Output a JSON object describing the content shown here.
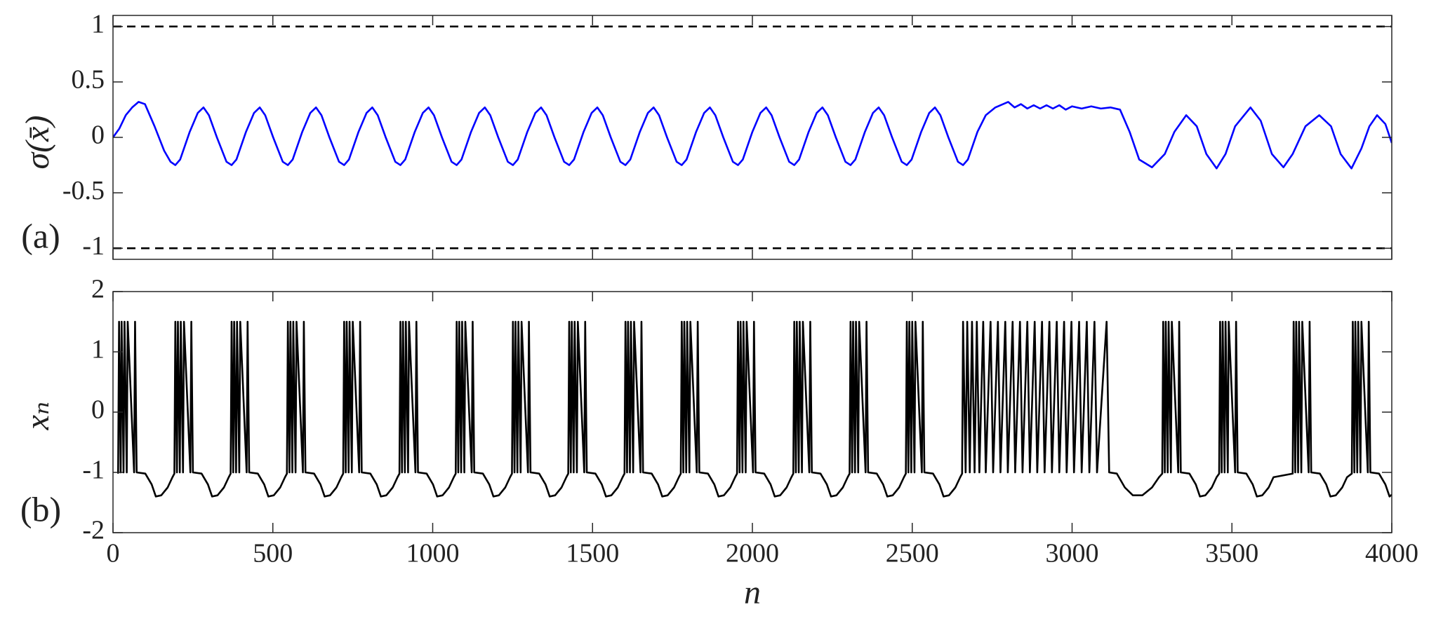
{
  "chart_data": [
    {
      "type": "line",
      "ylabel": "σ(x̄)",
      "panel_label": "(a)",
      "color": "#0000ff",
      "xlim": [
        0,
        4000
      ],
      "xticks": [
        0,
        500,
        1000,
        1500,
        2000,
        2500,
        3000,
        3500,
        4000
      ],
      "show_xtick_labels": false,
      "ylim": [
        -1.1,
        1.1
      ],
      "yticks": [
        -1,
        -0.5,
        0,
        0.5,
        1
      ],
      "reference_lines": [
        -1,
        1
      ],
      "x": [
        0,
        20,
        40,
        60,
        80,
        100,
        130,
        160,
        180,
        195,
        210,
        240,
        265,
        283,
        300,
        325,
        355,
        371,
        386,
        416,
        441,
        459,
        476,
        501,
        531,
        547,
        562,
        592,
        617,
        635,
        652,
        677,
        707,
        723,
        738,
        768,
        793,
        811,
        828,
        853,
        883,
        899,
        914,
        944,
        969,
        987,
        1004,
        1029,
        1059,
        1075,
        1090,
        1120,
        1145,
        1163,
        1180,
        1205,
        1235,
        1251,
        1266,
        1296,
        1321,
        1339,
        1356,
        1381,
        1411,
        1427,
        1442,
        1472,
        1497,
        1515,
        1532,
        1557,
        1587,
        1603,
        1618,
        1648,
        1673,
        1691,
        1708,
        1733,
        1763,
        1779,
        1794,
        1824,
        1849,
        1867,
        1884,
        1909,
        1939,
        1955,
        1970,
        2000,
        2025,
        2043,
        2060,
        2085,
        2115,
        2131,
        2146,
        2176,
        2201,
        2219,
        2236,
        2261,
        2291,
        2307,
        2322,
        2352,
        2377,
        2395,
        2412,
        2437,
        2467,
        2483,
        2498,
        2528,
        2553,
        2571,
        2588,
        2613,
        2643,
        2659,
        2674,
        2704,
        2730,
        2760,
        2800,
        2820,
        2840,
        2860,
        2880,
        2900,
        2920,
        2940,
        2960,
        2980,
        3000,
        3030,
        3060,
        3090,
        3120,
        3150,
        3180,
        3210,
        3250,
        3290,
        3320,
        3357,
        3390,
        3420,
        3452,
        3480,
        3510,
        3558,
        3590,
        3625,
        3661,
        3690,
        3730,
        3773,
        3810,
        3840,
        3874,
        3905,
        3930,
        3954,
        3980,
        4000
      ],
      "values": [
        0,
        0.08,
        0.2,
        0.27,
        0.32,
        0.3,
        0.1,
        -0.12,
        -0.22,
        -0.25,
        -0.2,
        0.05,
        0.22,
        0.27,
        0.2,
        0,
        -0.22,
        -0.25,
        -0.2,
        0.05,
        0.22,
        0.27,
        0.2,
        0,
        -0.22,
        -0.25,
        -0.2,
        0.05,
        0.22,
        0.27,
        0.2,
        0,
        -0.22,
        -0.25,
        -0.2,
        0.05,
        0.22,
        0.27,
        0.2,
        0,
        -0.22,
        -0.25,
        -0.2,
        0.05,
        0.22,
        0.27,
        0.2,
        0,
        -0.22,
        -0.25,
        -0.2,
        0.05,
        0.22,
        0.27,
        0.2,
        0,
        -0.22,
        -0.25,
        -0.2,
        0.05,
        0.22,
        0.27,
        0.2,
        0,
        -0.22,
        -0.25,
        -0.2,
        0.05,
        0.22,
        0.27,
        0.2,
        0,
        -0.22,
        -0.25,
        -0.2,
        0.05,
        0.22,
        0.27,
        0.2,
        0,
        -0.22,
        -0.25,
        -0.2,
        0.05,
        0.22,
        0.27,
        0.2,
        0,
        -0.22,
        -0.25,
        -0.2,
        0.05,
        0.22,
        0.27,
        0.2,
        0,
        -0.22,
        -0.25,
        -0.2,
        0.05,
        0.22,
        0.27,
        0.2,
        0,
        -0.22,
        -0.25,
        -0.2,
        0.05,
        0.22,
        0.27,
        0.2,
        0,
        -0.22,
        -0.25,
        -0.2,
        0.05,
        0.22,
        0.27,
        0.2,
        0,
        -0.22,
        -0.25,
        -0.2,
        0.05,
        0.2,
        0.27,
        0.32,
        0.27,
        0.3,
        0.26,
        0.29,
        0.26,
        0.29,
        0.26,
        0.29,
        0.25,
        0.28,
        0.26,
        0.28,
        0.26,
        0.27,
        0.25,
        0.05,
        -0.2,
        -0.27,
        -0.15,
        0.05,
        0.2,
        0.1,
        -0.15,
        -0.28,
        -0.15,
        0.1,
        0.27,
        0.15,
        -0.15,
        -0.27,
        -0.15,
        0.1,
        0.2,
        0.1,
        -0.15,
        -0.28,
        -0.1,
        0.1,
        0.2,
        0.12,
        -0.05
      ]
    },
    {
      "type": "line",
      "ylabel": "xₙ",
      "xlabel": "n",
      "panel_label": "(b)",
      "color": "#000000",
      "xlim": [
        0,
        4000
      ],
      "xticks": [
        0,
        500,
        1000,
        1500,
        2000,
        2500,
        3000,
        3500,
        4000
      ],
      "show_xtick_labels": true,
      "ylim": [
        -2,
        2
      ],
      "yticks": [
        -2,
        -1,
        0,
        1,
        2
      ],
      "x": [
        16,
        19,
        24,
        27,
        33,
        36,
        43,
        46,
        66,
        69,
        74,
        101,
        121,
        134,
        151,
        171,
        186,
        192,
        195,
        200,
        203,
        209,
        212,
        219,
        222,
        242,
        245,
        250,
        277,
        297,
        310,
        327,
        347,
        362,
        368,
        371,
        376,
        379,
        385,
        388,
        395,
        398,
        418,
        421,
        426,
        453,
        473,
        486,
        503,
        523,
        538,
        544,
        547,
        552,
        555,
        561,
        564,
        571,
        574,
        594,
        597,
        602,
        629,
        649,
        662,
        679,
        699,
        714,
        720,
        723,
        728,
        731,
        737,
        740,
        747,
        750,
        770,
        773,
        778,
        805,
        825,
        838,
        855,
        875,
        890,
        896,
        899,
        904,
        907,
        913,
        916,
        923,
        926,
        946,
        949,
        954,
        981,
        1001,
        1014,
        1031,
        1051,
        1066,
        1072,
        1075,
        1080,
        1083,
        1089,
        1092,
        1099,
        1102,
        1122,
        1125,
        1130,
        1157,
        1177,
        1190,
        1207,
        1227,
        1242,
        1248,
        1251,
        1256,
        1259,
        1265,
        1268,
        1275,
        1278,
        1298,
        1301,
        1306,
        1333,
        1353,
        1366,
        1383,
        1403,
        1418,
        1424,
        1427,
        1432,
        1435,
        1441,
        1444,
        1451,
        1454,
        1474,
        1477,
        1482,
        1509,
        1529,
        1542,
        1559,
        1579,
        1594,
        1600,
        1603,
        1608,
        1611,
        1617,
        1620,
        1627,
        1630,
        1650,
        1653,
        1658,
        1685,
        1705,
        1718,
        1735,
        1755,
        1770,
        1776,
        1779,
        1784,
        1787,
        1793,
        1796,
        1803,
        1806,
        1826,
        1829,
        1834,
        1861,
        1881,
        1894,
        1911,
        1931,
        1946,
        1952,
        1955,
        1960,
        1963,
        1969,
        1972,
        1979,
        1982,
        2002,
        2005,
        2010,
        2037,
        2057,
        2070,
        2087,
        2107,
        2122,
        2128,
        2131,
        2136,
        2139,
        2145,
        2148,
        2155,
        2158,
        2178,
        2181,
        2186,
        2213,
        2233,
        2246,
        2263,
        2283,
        2298,
        2304,
        2307,
        2312,
        2315,
        2321,
        2324,
        2331,
        2334,
        2354,
        2357,
        2362,
        2389,
        2409,
        2422,
        2439,
        2459,
        2474,
        2480,
        2483,
        2488,
        2491,
        2497,
        2500,
        2507,
        2510,
        2530,
        2533,
        2538,
        2565,
        2585,
        2598,
        2615,
        2635,
        2650,
        2656,
        2659,
        2667,
        2672,
        2680,
        2687,
        2695,
        2702,
        2710,
        2722,
        2730,
        2745,
        2753,
        2768,
        2776,
        2791,
        2799,
        2814,
        2822,
        2837,
        2845,
        2860,
        2868,
        2883,
        2891,
        2906,
        2914,
        2929,
        2937,
        2952,
        2960,
        2975,
        2983,
        2998,
        3006,
        3022,
        3030,
        3046,
        3054,
        3070,
        3078,
        3108,
        3116,
        3140,
        3165,
        3190,
        3220,
        3250,
        3272,
        3282,
        3285,
        3290,
        3293,
        3299,
        3302,
        3309,
        3312,
        3332,
        3335,
        3340,
        3367,
        3387,
        3400,
        3417,
        3437,
        3452,
        3460,
        3463,
        3468,
        3471,
        3477,
        3480,
        3487,
        3490,
        3510,
        3513,
        3518,
        3545,
        3565,
        3578,
        3595,
        3615,
        3630,
        3690,
        3693,
        3698,
        3701,
        3707,
        3710,
        3717,
        3720,
        3740,
        3743,
        3748,
        3775,
        3795,
        3808,
        3825,
        3845,
        3860,
        3875,
        3878,
        3883,
        3886,
        3892,
        3895,
        3902,
        3905,
        3925,
        3928,
        3933,
        3960,
        3980,
        3993,
        4000
      ],
      "values": [
        -1.02,
        1.5,
        -1,
        1.5,
        -1,
        1.5,
        -1,
        1.5,
        -1,
        1.5,
        -1,
        -1.02,
        -1.2,
        -1.4,
        -1.38,
        -1.25,
        -1.08,
        -1.02,
        1.5,
        -1,
        1.5,
        -1,
        1.5,
        -1,
        1.5,
        -1,
        1.5,
        -1,
        -1.02,
        -1.2,
        -1.4,
        -1.38,
        -1.25,
        -1.08,
        -1.02,
        1.5,
        -1,
        1.5,
        -1,
        1.5,
        -1,
        1.5,
        -1,
        1.5,
        -1,
        -1.02,
        -1.2,
        -1.4,
        -1.38,
        -1.25,
        -1.08,
        -1.02,
        1.5,
        -1,
        1.5,
        -1,
        1.5,
        -1,
        1.5,
        -1,
        1.5,
        -1,
        -1.02,
        -1.2,
        -1.4,
        -1.38,
        -1.25,
        -1.08,
        -1.02,
        1.5,
        -1,
        1.5,
        -1,
        1.5,
        -1,
        1.5,
        -1,
        1.5,
        -1,
        -1.02,
        -1.2,
        -1.4,
        -1.38,
        -1.25,
        -1.08,
        -1.02,
        1.5,
        -1,
        1.5,
        -1,
        1.5,
        -1,
        1.5,
        -1,
        1.5,
        -1,
        -1.02,
        -1.2,
        -1.4,
        -1.38,
        -1.25,
        -1.08,
        -1.02,
        1.5,
        -1,
        1.5,
        -1,
        1.5,
        -1,
        1.5,
        -1,
        1.5,
        -1,
        -1.02,
        -1.2,
        -1.4,
        -1.38,
        -1.25,
        -1.08,
        -1.02,
        1.5,
        -1,
        1.5,
        -1,
        1.5,
        -1,
        1.5,
        -1,
        1.5,
        -1,
        -1.02,
        -1.2,
        -1.4,
        -1.38,
        -1.25,
        -1.08,
        -1.02,
        1.5,
        -1,
        1.5,
        -1,
        1.5,
        -1,
        1.5,
        -1,
        1.5,
        -1,
        -1.02,
        -1.2,
        -1.4,
        -1.38,
        -1.25,
        -1.08,
        -1.02,
        1.5,
        -1,
        1.5,
        -1,
        1.5,
        -1,
        1.5,
        -1,
        1.5,
        -1,
        -1.02,
        -1.2,
        -1.4,
        -1.38,
        -1.25,
        -1.08,
        -1.02,
        1.5,
        -1,
        1.5,
        -1,
        1.5,
        -1,
        1.5,
        -1,
        1.5,
        -1,
        -1.02,
        -1.2,
        -1.4,
        -1.38,
        -1.25,
        -1.08,
        -1.02,
        1.5,
        -1,
        1.5,
        -1,
        1.5,
        -1,
        1.5,
        -1,
        1.5,
        -1,
        -1.02,
        -1.2,
        -1.4,
        -1.38,
        -1.25,
        -1.08,
        -1.02,
        1.5,
        -1,
        1.5,
        -1,
        1.5,
        -1,
        1.5,
        -1,
        1.5,
        -1,
        -1.02,
        -1.2,
        -1.4,
        -1.38,
        -1.25,
        -1.08,
        -1.02,
        1.5,
        -1,
        1.5,
        -1,
        1.5,
        -1,
        1.5,
        -1,
        1.5,
        -1,
        -1.02,
        -1.2,
        -1.4,
        -1.38,
        -1.25,
        -1.08,
        -1.02,
        1.5,
        -1,
        1.5,
        -1,
        1.5,
        -1,
        1.5,
        -1,
        1.5,
        -1,
        -1.02,
        -1.2,
        -1.4,
        -1.38,
        -1.25,
        -1.08,
        -1.02,
        1.5,
        -1,
        1.5,
        -1,
        1.5,
        -1,
        1.5,
        -1,
        1.5,
        -1,
        1.5,
        -1,
        1.5,
        -1,
        1.5,
        -1,
        1.5,
        -1,
        1.5,
        -1,
        1.5,
        -1,
        1.5,
        -1,
        1.5,
        -1,
        1.5,
        -1,
        1.5,
        -1,
        1.5,
        -1,
        1.5,
        -1,
        1.5,
        -1,
        1.5,
        -1,
        1.5,
        -1,
        1.5,
        -1,
        -1.02,
        -1.25,
        -1.38,
        -1.38,
        -1.25,
        -1.08,
        -1.02,
        1.5,
        -1,
        1.5,
        -1,
        1.5,
        -1,
        1.5,
        -1,
        1.5,
        -1,
        -1.02,
        -1.2,
        -1.4,
        -1.38,
        -1.25,
        -1.08,
        -1.02,
        1.5,
        -1,
        1.5,
        -1,
        1.5,
        -1,
        1.5,
        -1,
        1.5,
        -1,
        -1.02,
        -1.2,
        -1.4,
        -1.38,
        -1.25,
        -1.08,
        -1.02,
        1.5,
        -1,
        1.5,
        -1,
        1.5,
        -1,
        1.5,
        -1,
        1.5,
        -1,
        -1.02,
        -1.2,
        -1.4,
        -1.38,
        -1.25,
        -1.08,
        -1.02,
        1.5,
        -1,
        1.5,
        -1,
        1.5,
        -1,
        1.5,
        -1,
        1.5,
        -1,
        -1.02,
        -1.2,
        -1.4,
        -1.37
      ]
    }
  ]
}
